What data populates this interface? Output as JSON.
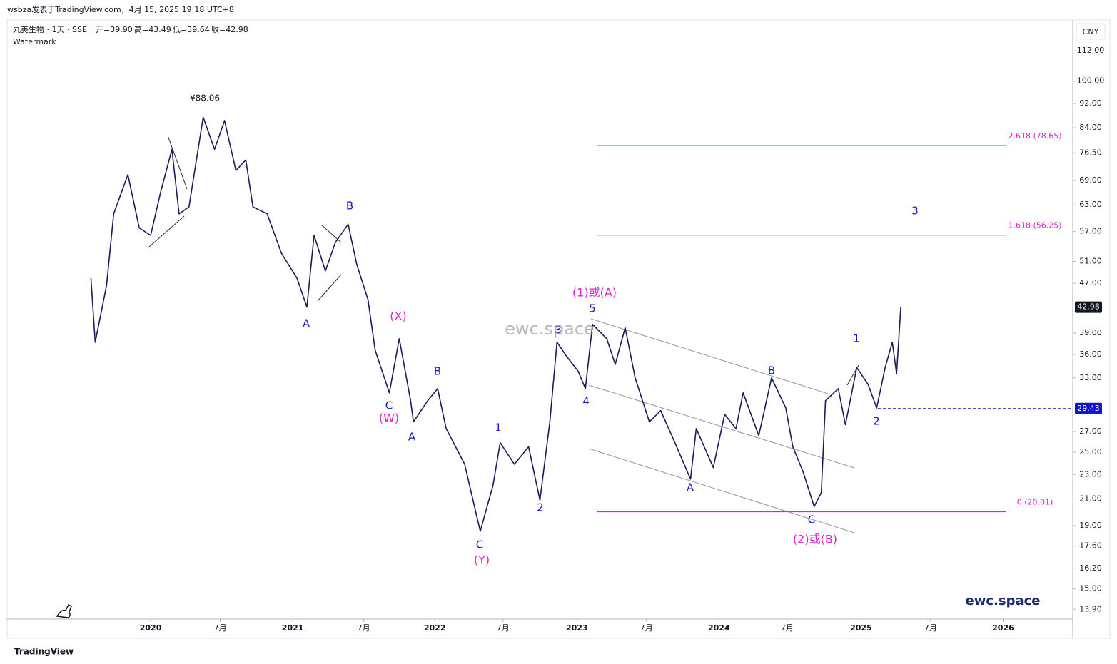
{
  "header": {
    "byline": "wsbza发表于TradingView.com，4月 15, 2025 19:18 UTC+8",
    "symbol": "丸美生物 · 1天 · SSE",
    "ohlc": [
      "开=39.90",
      "高=43.49",
      "低=39.64",
      "收=42.98"
    ],
    "watermark_label": "Watermark",
    "currency": "CNY"
  },
  "chart_data": {
    "type": "line",
    "log_scale": true,
    "color": "#1c1a5c",
    "x": [
      2019.58,
      2019.61,
      2019.69,
      2019.74,
      2019.84,
      2019.92,
      2020.0,
      2020.07,
      2020.15,
      2020.2,
      2020.27,
      2020.37,
      2020.45,
      2020.52,
      2020.6,
      2020.67,
      2020.72,
      2020.82,
      2020.92,
      2021.03,
      2021.1,
      2021.15,
      2021.23,
      2021.3,
      2021.39,
      2021.45,
      2021.53,
      2021.58,
      2021.68,
      2021.75,
      2021.83,
      2021.85,
      2021.95,
      2022.02,
      2022.08,
      2022.21,
      2022.32,
      2022.41,
      2022.46,
      2022.56,
      2022.66,
      2022.74,
      2022.81,
      2022.86,
      2022.93,
      2023.01,
      2023.06,
      2023.11,
      2023.21,
      2023.27,
      2023.34,
      2023.41,
      2023.51,
      2023.59,
      2023.69,
      2023.8,
      2023.84,
      2023.96,
      2024.04,
      2024.12,
      2024.17,
      2024.28,
      2024.37,
      2024.47,
      2024.52,
      2024.59,
      2024.67,
      2024.72,
      2024.75,
      2024.84,
      2024.89,
      2024.97,
      2025.05,
      2025.11,
      2025.17,
      2025.22,
      2025.25,
      2025.28
    ],
    "values": [
      47.9,
      37.7,
      46.6,
      60.9,
      70.5,
      57.8,
      56.2,
      66.0,
      77.5,
      60.9,
      62.5,
      87.4,
      77.5,
      86.3,
      71.6,
      74.5,
      62.5,
      60.9,
      52.6,
      47.9,
      43.0,
      56.2,
      49.2,
      54.7,
      58.6,
      50.5,
      44.2,
      36.6,
      31.2,
      38.2,
      30.3,
      28.0,
      30.3,
      31.7,
      27.3,
      23.9,
      18.6,
      22.1,
      25.9,
      23.9,
      25.5,
      20.9,
      28.0,
      37.7,
      35.7,
      33.8,
      31.7,
      40.3,
      38.2,
      34.7,
      39.8,
      33.0,
      28.0,
      29.2,
      25.9,
      22.6,
      27.3,
      23.6,
      28.8,
      27.3,
      31.2,
      26.6,
      33.0,
      29.5,
      25.5,
      23.3,
      20.4,
      21.5,
      30.3,
      31.7,
      27.7,
      34.3,
      32.2,
      29.5,
      34.3,
      37.7,
      33.5,
      42.98
    ],
    "xlim": [
      2018.99,
      2026.49
    ],
    "ylim": [
      13.4,
      125
    ],
    "xticks": [
      {
        "value": 2020,
        "label": "2020"
      },
      {
        "value": 2020.49,
        "label": "7月"
      },
      {
        "value": 2021,
        "label": "2021"
      },
      {
        "value": 2021.5,
        "label": "7月"
      },
      {
        "value": 2022,
        "label": "2022"
      },
      {
        "value": 2022.48,
        "label": "7月"
      },
      {
        "value": 2023,
        "label": "2023"
      },
      {
        "value": 2023.49,
        "label": "7月"
      },
      {
        "value": 2024,
        "label": "2024"
      },
      {
        "value": 2024.48,
        "label": "7月"
      },
      {
        "value": 2025,
        "label": "2025"
      },
      {
        "value": 2025.49,
        "label": "7月"
      },
      {
        "value": 2026,
        "label": "2026"
      }
    ],
    "yticks": [
      {
        "value": 112,
        "label": "112.00"
      },
      {
        "value": 100,
        "label": "100.00"
      },
      {
        "value": 92,
        "label": "92.00"
      },
      {
        "value": 84,
        "label": "84.00"
      },
      {
        "value": 76.5,
        "label": "76.50"
      },
      {
        "value": 69,
        "label": "69.00"
      },
      {
        "value": 63,
        "label": "63.00"
      },
      {
        "value": 57,
        "label": "57.00"
      },
      {
        "value": 51,
        "label": "51.00"
      },
      {
        "value": 47,
        "label": "47.00"
      },
      {
        "value": 39,
        "label": "39.00"
      },
      {
        "value": 36,
        "label": "36.00"
      },
      {
        "value": 33,
        "label": "33.00"
      },
      {
        "value": 27,
        "label": "27.00"
      },
      {
        "value": 25,
        "label": "25.00"
      },
      {
        "value": 23,
        "label": "23.00"
      },
      {
        "value": 21,
        "label": "21.00"
      },
      {
        "value": 19,
        "label": "19.00"
      },
      {
        "value": 17.6,
        "label": "17.60"
      },
      {
        "value": 16.2,
        "label": "16.20"
      },
      {
        "value": 15,
        "label": "15.00"
      },
      {
        "value": 13.9,
        "label": "13.90"
      }
    ],
    "last_price": 42.98,
    "marked_price": 29.43,
    "high_label": "¥88.06",
    "fib_levels": [
      {
        "value": 78.65,
        "label": "2.618 (78.65)"
      },
      {
        "value": 56.25,
        "label": "1.618 (56.25)"
      },
      {
        "value": 20.01,
        "label": "0 (20.01)"
      }
    ],
    "fib_color": "#e020d0",
    "fib_x": [
      2023.14,
      2026.02
    ],
    "annotations": [
      {
        "text": "B",
        "color": "#1515c8"
      },
      {
        "text": "A",
        "color": "#1515c8"
      },
      {
        "text": "(X)",
        "color": "#e020c8"
      },
      {
        "text": "C",
        "color": "#1515c8"
      },
      {
        "text": "(W)",
        "color": "#e020c8"
      },
      {
        "text": "A",
        "color": "#1515c8"
      },
      {
        "text": "B",
        "color": "#1515c8"
      },
      {
        "text": "1",
        "color": "#1515c8"
      },
      {
        "text": "2",
        "color": "#1515c8"
      },
      {
        "text": "C",
        "color": "#1515c8"
      },
      {
        "text": "(Y)",
        "color": "#e020c8"
      },
      {
        "text": "3",
        "color": "#1515c8"
      },
      {
        "text": "4",
        "color": "#1515c8"
      },
      {
        "text": "5",
        "color": "#1515c8"
      },
      {
        "text": "(1)或(A)",
        "color": "#e020c8"
      },
      {
        "text": "A",
        "color": "#1515c8"
      },
      {
        "text": "B",
        "color": "#1515c8"
      },
      {
        "text": "C",
        "color": "#1515c8"
      },
      {
        "text": "(2)或(B)",
        "color": "#e020c8"
      },
      {
        "text": "1",
        "color": "#1515c8"
      },
      {
        "text": "2",
        "color": "#1515c8"
      },
      {
        "text": "3",
        "color": "#1515c8"
      }
    ],
    "center_watermark": "ewc.space",
    "corner_watermark": "ewc.space"
  },
  "footer": {
    "brand": "TradingView"
  }
}
